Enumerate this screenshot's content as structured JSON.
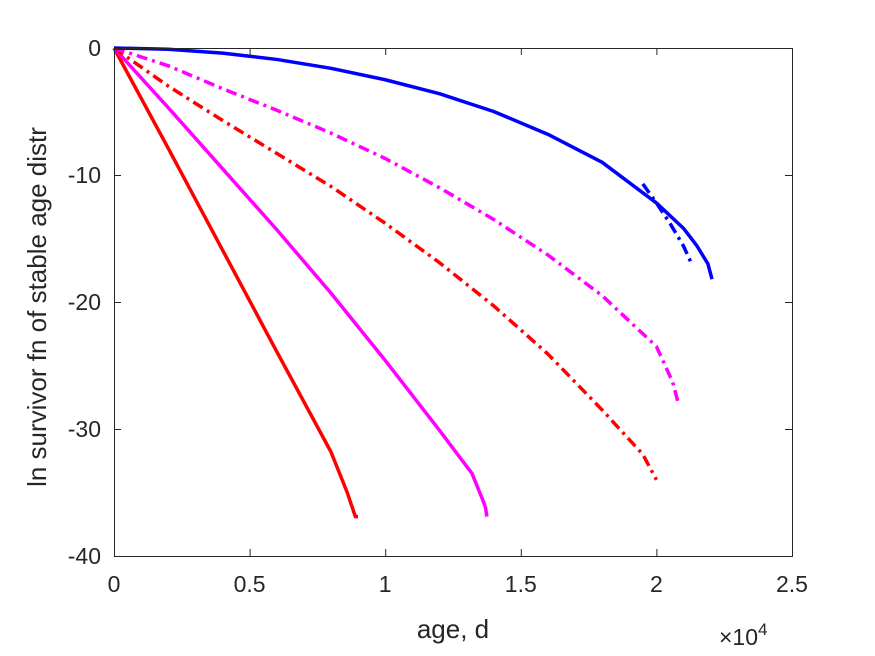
{
  "chart_data": {
    "type": "line",
    "title": "",
    "xlabel": "age, d",
    "ylabel": "ln survivor fn of stable age distr",
    "xlim": [
      0,
      25000
    ],
    "ylim": [
      -40,
      0
    ],
    "x_tick_labels": [
      "0",
      "0.5",
      "1",
      "1.5",
      "2",
      "2.5"
    ],
    "x_tick_values": [
      0,
      5000,
      10000,
      15000,
      20000,
      25000
    ],
    "x_exponent_label": {
      "base": "×10",
      "exponent": "4"
    },
    "y_tick_labels": [
      "0",
      "-10",
      "-20",
      "-30",
      "-40"
    ],
    "y_tick_values": [
      0,
      -10,
      -20,
      -30,
      -40
    ],
    "grid": false,
    "series": [
      {
        "color": "#ff0000",
        "style": "solid",
        "x": [
          0,
          2000,
          4000,
          6000,
          8000,
          8600,
          8900,
          9000
        ],
        "y": [
          0,
          -7.9,
          -15.9,
          -23.9,
          -31.8,
          -35.0,
          -36.9,
          -36.9
        ]
      },
      {
        "color": "#ff00ff",
        "style": "solid",
        "x": [
          0,
          2000,
          4000,
          6000,
          8000,
          10000,
          12000,
          13200,
          13600,
          13700,
          13750
        ],
        "y": [
          0,
          -4.7,
          -9.5,
          -14.3,
          -19.3,
          -24.6,
          -30.1,
          -33.5,
          -35.6,
          -36.2,
          -36.9
        ]
      },
      {
        "color": "#ff0000",
        "style": "dashdot",
        "x": [
          0,
          2000,
          4000,
          6000,
          8000,
          10000,
          12000,
          14000,
          16000,
          18000,
          19500,
          20000
        ],
        "y": [
          0,
          -3.0,
          -5.7,
          -8.3,
          -10.9,
          -13.8,
          -16.9,
          -20.3,
          -24.1,
          -28.5,
          -32.0,
          -34.0
        ]
      },
      {
        "color": "#ff00ff",
        "style": "dashdot",
        "x": [
          0,
          2000,
          4000,
          6000,
          8000,
          10000,
          12000,
          14000,
          16000,
          18000,
          20000,
          20600,
          20800
        ],
        "y": [
          0,
          -1.4,
          -3.2,
          -4.9,
          -6.7,
          -8.7,
          -11.0,
          -13.5,
          -16.3,
          -19.5,
          -23.5,
          -26.3,
          -27.9
        ]
      },
      {
        "color": "#0000ff",
        "style": "solid",
        "x": [
          0,
          2000,
          4000,
          6000,
          8000,
          10000,
          12000,
          14000,
          16000,
          18000,
          20000,
          21000,
          21500,
          21900,
          22050
        ],
        "y": [
          0,
          -0.1,
          -0.4,
          -0.9,
          -1.6,
          -2.5,
          -3.6,
          -5.0,
          -6.8,
          -9.0,
          -12.2,
          -14.2,
          -15.6,
          -17.0,
          -18.2
        ]
      },
      {
        "color": "#0000ff",
        "style": "dashdot",
        "x": [
          19500,
          20000,
          20500,
          21000,
          21300
        ],
        "y": [
          -10.7,
          -12.2,
          -13.8,
          -15.6,
          -17.0
        ]
      }
    ]
  }
}
